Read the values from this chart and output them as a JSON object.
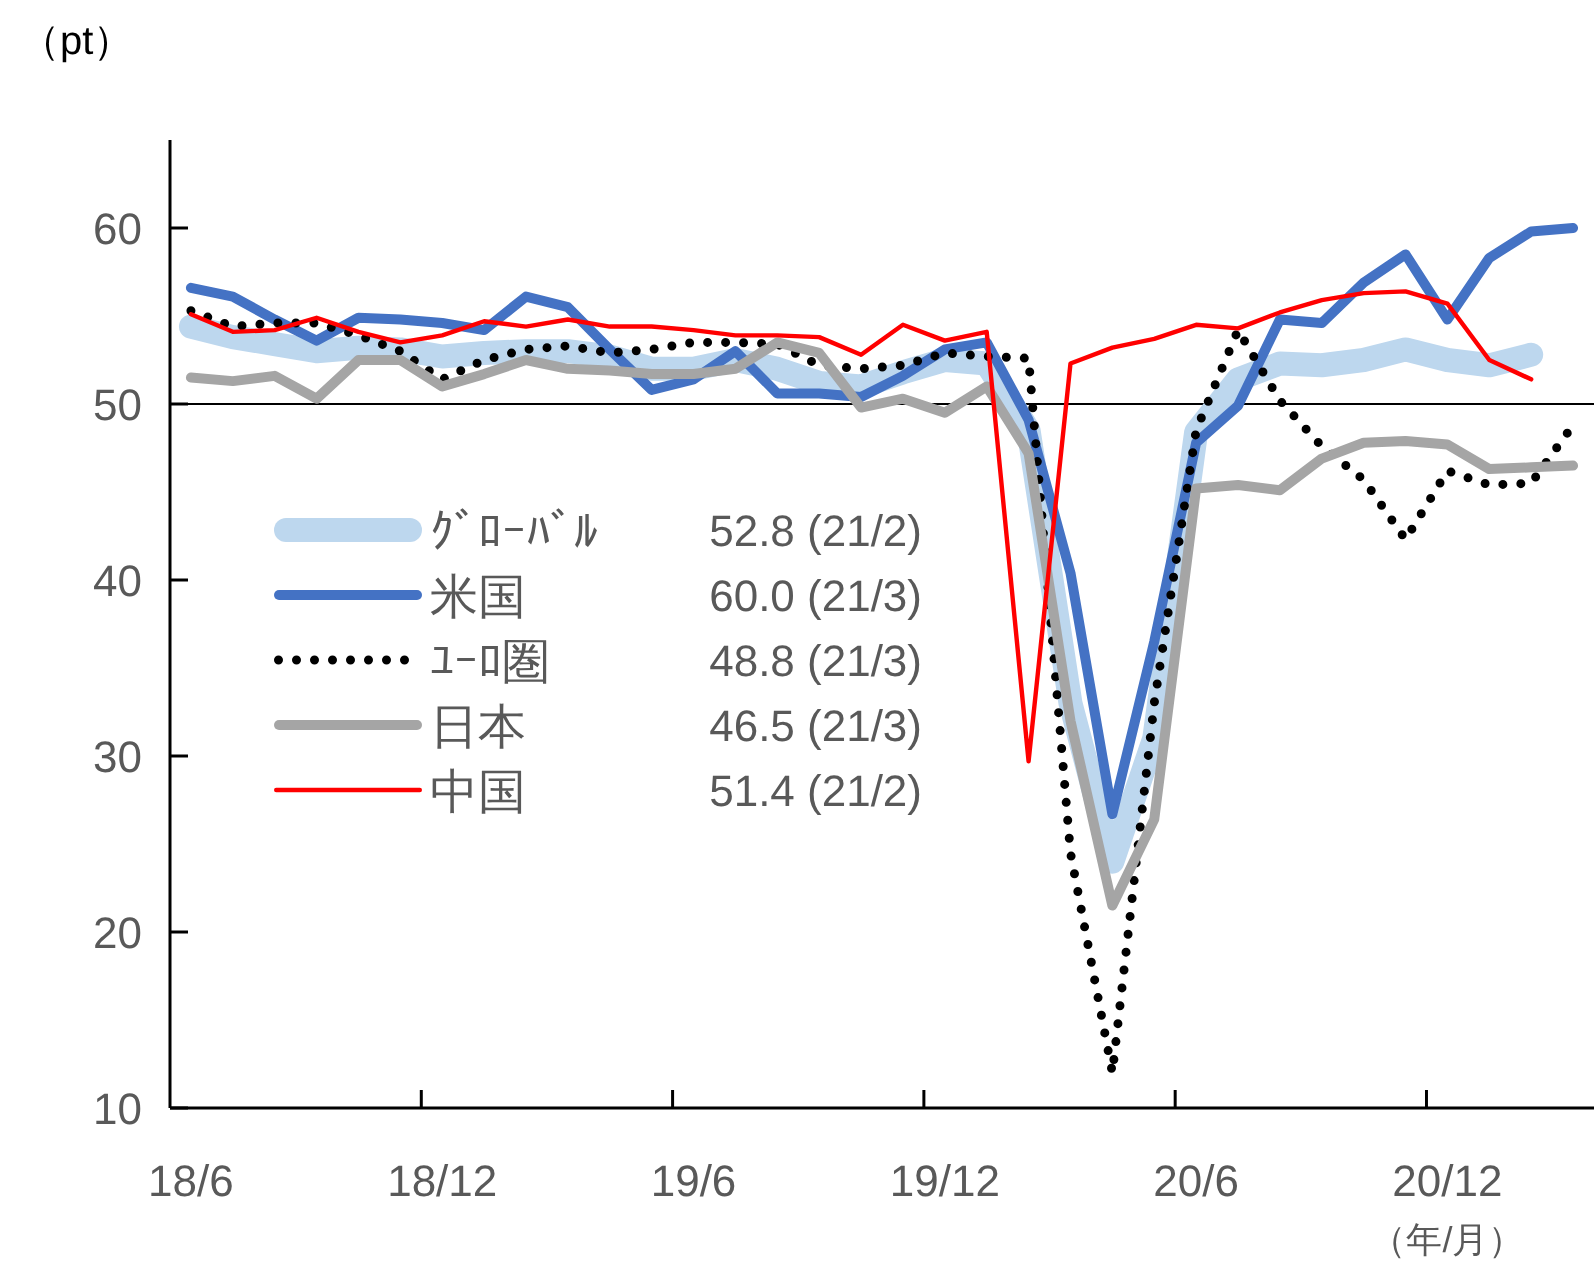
{
  "chart_data": {
    "type": "line",
    "ylabel": "（pt）",
    "xlabel": "（年/月）",
    "categories": [
      "18/6",
      null,
      null,
      null,
      null,
      null,
      "18/12",
      null,
      null,
      null,
      null,
      null,
      "19/6",
      null,
      null,
      null,
      null,
      null,
      "19/12",
      null,
      null,
      null,
      null,
      null,
      "20/6",
      null,
      null,
      null,
      null,
      null,
      "20/12",
      null,
      null,
      null
    ],
    "series": [
      {
        "name": "ｸﾞﾛｰﾊﾞﾙ",
        "color": "#bdd7ee",
        "line_style": "solid",
        "values": [
          54.4,
          53.8,
          53.4,
          53.0,
          53.2,
          53.1,
          52.7,
          52.9,
          53.0,
          53.0,
          52.7,
          52.0,
          52.0,
          52.5,
          52.0,
          51.2,
          51.0,
          51.8,
          52.5,
          52.3,
          48.5,
          33.0,
          24.0,
          31.0,
          48.4,
          51.4,
          52.3,
          52.2,
          52.5,
          53.1,
          52.5,
          52.2,
          52.8,
          null
        ]
      },
      {
        "name": "米国",
        "color": "#4472c4",
        "line_style": "solid",
        "values": [
          56.6,
          56.1,
          54.8,
          53.6,
          54.9,
          54.8,
          54.6,
          54.2,
          56.1,
          55.5,
          53.1,
          50.8,
          51.4,
          53.0,
          50.6,
          50.6,
          50.4,
          51.6,
          53.1,
          53.5,
          49.1,
          40.4,
          26.7,
          36.5,
          47.8,
          49.9,
          54.8,
          54.6,
          56.9,
          58.5,
          54.8,
          58.3,
          59.8,
          60.0
        ]
      },
      {
        "name": "ﾕｰﾛ圏",
        "color": "#000000",
        "line_style": "dotted",
        "values": [
          55.3,
          54.4,
          54.6,
          54.6,
          53.9,
          53.0,
          51.4,
          52.5,
          53.1,
          53.3,
          52.9,
          53.1,
          53.5,
          53.5,
          53.4,
          52.2,
          52.0,
          52.2,
          52.9,
          52.7,
          52.6,
          24.5,
          12.0,
          33.0,
          48.5,
          54.2,
          50.2,
          47.6,
          45.7,
          42.3,
          46.2,
          45.4,
          45.5,
          48.8
        ]
      },
      {
        "name": "日本",
        "color": "#a5a5a5",
        "line_style": "solid",
        "values": [
          51.5,
          51.3,
          51.6,
          50.3,
          52.5,
          52.5,
          51.0,
          51.7,
          52.5,
          52.0,
          51.9,
          51.7,
          51.7,
          52.0,
          53.5,
          52.9,
          49.8,
          50.3,
          49.5,
          51.0,
          47.2,
          32.0,
          21.5,
          26.4,
          45.2,
          45.4,
          45.1,
          46.9,
          47.8,
          47.9,
          47.7,
          46.3,
          46.4,
          46.5
        ]
      },
      {
        "name": "中国",
        "color": "#ff0000",
        "line_style": "solid",
        "values": [
          55.1,
          54.1,
          54.2,
          54.9,
          54.1,
          53.5,
          53.9,
          54.7,
          54.4,
          54.8,
          54.4,
          54.4,
          54.2,
          53.9,
          53.9,
          53.8,
          52.8,
          54.5,
          53.6,
          54.1,
          29.7,
          52.3,
          53.2,
          53.7,
          54.5,
          54.3,
          55.2,
          55.9,
          56.3,
          56.4,
          55.7,
          52.5,
          51.4,
          null
        ]
      }
    ],
    "ylim": [
      10,
      65
    ],
    "yticks": [
      10,
      20,
      30,
      40,
      50,
      60
    ],
    "ref_lines": [
      {
        "axis": "y",
        "value": 50,
        "color": "#000000"
      }
    ],
    "legend": "left",
    "grid": false,
    "annotations": [
      "52.8 (21/2)",
      "60.0 (21/3)",
      "48.8 (21/3)",
      "46.5 (21/3)",
      "51.4 (21/2)"
    ]
  }
}
